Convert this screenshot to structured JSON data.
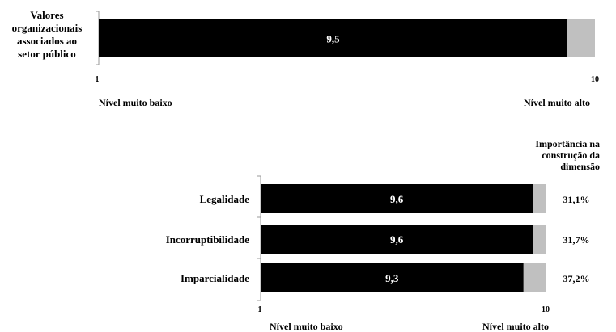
{
  "chart_data": [
    {
      "type": "bar",
      "orientation": "horizontal",
      "stacked": true,
      "categories": [
        "Valores organizacionais associados ao setor público"
      ],
      "category_lines": [
        [
          "Valores",
          "organizacionais",
          "associados ao",
          "setor público"
        ]
      ],
      "values": [
        9.5
      ],
      "value_labels": [
        "9,5"
      ],
      "xlim": [
        1,
        10
      ],
      "tick_labels": [
        "1",
        "10"
      ],
      "scale_labels": [
        "Nível muito baixo",
        "Nível muito alto"
      ],
      "colors": {
        "value": "#000000",
        "remainder": "#c0c0c0",
        "label": "#ffffff"
      }
    },
    {
      "type": "bar",
      "orientation": "horizontal",
      "stacked": true,
      "categories": [
        "Legalidade",
        "Incorruptibilidade",
        "Imparcialidade"
      ],
      "values": [
        9.6,
        9.6,
        9.3
      ],
      "value_labels": [
        "9,6",
        "9,6",
        "9,3"
      ],
      "importance_header": [
        "Importância na",
        "construção da",
        "dimensão"
      ],
      "importance": [
        "31,1%",
        "31,7%",
        "37,2%"
      ],
      "xlim": [
        1,
        10
      ],
      "tick_labels": [
        "1",
        "10"
      ],
      "scale_labels": [
        "Nível muito baixo",
        "Nível muito alto"
      ],
      "colors": {
        "value": "#000000",
        "remainder": "#c0c0c0",
        "label": "#ffffff"
      }
    }
  ]
}
